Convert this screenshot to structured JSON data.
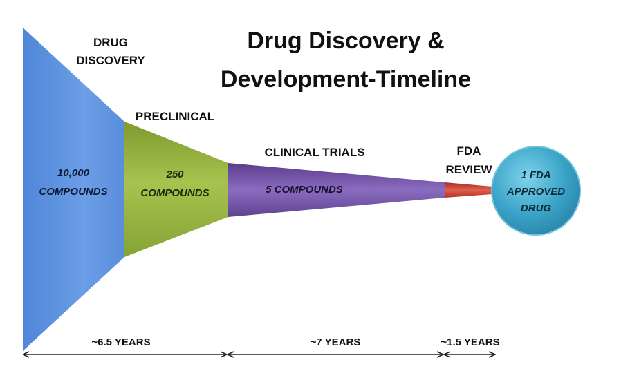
{
  "title": {
    "line1": "Drug Discovery &",
    "line2": "Development-Timeline"
  },
  "stages": [
    {
      "name_line1": "DRUG",
      "name_line2": "DISCOVERY",
      "count_line1": "10,000",
      "count_line2": "COMPOUNDS",
      "color": "#5a8edb"
    },
    {
      "name_line1": "PRECLINICAL",
      "count_line1": "250",
      "count_line2": "COMPOUNDS",
      "color": "#8fae3c"
    },
    {
      "name_line1": "CLINICAL TRIALS",
      "count_line1": "5 COMPOUNDS",
      "color": "#6a4a9a"
    },
    {
      "name_line1": "FDA",
      "name_line2": "REVIEW",
      "color": "#c0392b"
    }
  ],
  "outcome": {
    "line1": "1 FDA",
    "line2": "APPROVED",
    "line3": "DRUG",
    "color": "#3aa4c8"
  },
  "durations": [
    {
      "label": "~6.5 YEARS"
    },
    {
      "label": "~7 YEARS"
    },
    {
      "label": "~1.5 YEARS"
    }
  ]
}
